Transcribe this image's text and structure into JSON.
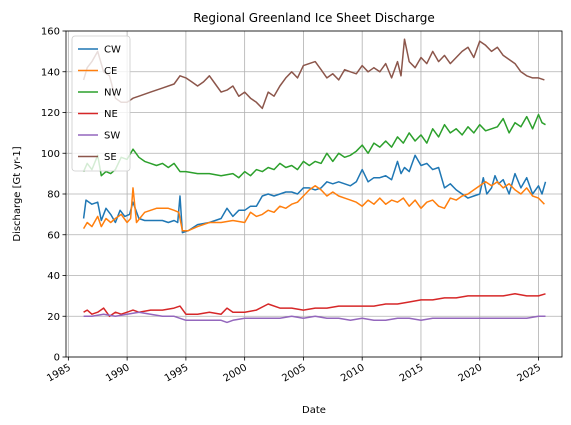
{
  "chart_data": {
    "type": "line",
    "title": "Regional Greenland Ice Sheet Discharge",
    "xlabel": "Date",
    "ylabel": "Discharge [Gt yr-1]",
    "xlim": [
      1984.8,
      2027.0
    ],
    "ylim": [
      0,
      160
    ],
    "xticks": [
      1985,
      1990,
      1995,
      2000,
      2005,
      2010,
      2015,
      2020,
      2025
    ],
    "yticks": [
      0,
      20,
      40,
      60,
      80,
      100,
      120,
      140,
      160
    ],
    "grid": true,
    "legend_position": "top-left",
    "series": [
      {
        "name": "CW",
        "color": "#1f77b4",
        "x": [
          1986.3,
          1986.5,
          1987.0,
          1987.5,
          1987.8,
          1988.2,
          1988.6,
          1989.0,
          1989.4,
          1989.8,
          1990.2,
          1990.5,
          1991.0,
          1991.5,
          1992.0,
          1992.5,
          1993.0,
          1993.5,
          1994.0,
          1994.3,
          1994.5,
          1994.7,
          1995.2,
          1996.0,
          1997.0,
          1998.0,
          1998.5,
          1999.0,
          1999.5,
          2000.0,
          2000.5,
          2001.0,
          2001.5,
          2002.0,
          2002.5,
          2003.0,
          2003.5,
          2004.0,
          2004.5,
          2005.0,
          2005.5,
          2006.0,
          2006.5,
          2007.0,
          2007.5,
          2008.0,
          2008.5,
          2009.0,
          2009.5,
          2010.0,
          2010.5,
          2011.0,
          2011.5,
          2012.0,
          2012.5,
          2013.0,
          2013.3,
          2013.6,
          2014.0,
          2014.5,
          2015.0,
          2015.5,
          2016.0,
          2016.5,
          2017.0,
          2017.5,
          2018.0,
          2018.5,
          2019.0,
          2019.5,
          2020.0,
          2020.3,
          2020.6,
          2021.0,
          2021.3,
          2021.6,
          2022.0,
          2022.5,
          2023.0,
          2023.5,
          2024.0,
          2024.5,
          2025.0,
          2025.3,
          2025.6
        ],
        "y": [
          68,
          77,
          75,
          76,
          67,
          73,
          70,
          66,
          72,
          69,
          70,
          76,
          68,
          67,
          67,
          67,
          67,
          66,
          67,
          66,
          79,
          61,
          62,
          65,
          66,
          68,
          73,
          69,
          72,
          72,
          74,
          74,
          79,
          80,
          79,
          80,
          81,
          81,
          80,
          83,
          83,
          82,
          83,
          86,
          85,
          86,
          85,
          84,
          86,
          92,
          86,
          88,
          88,
          89,
          87,
          96,
          90,
          93,
          91,
          99,
          94,
          95,
          92,
          93,
          83,
          85,
          82,
          80,
          78,
          79,
          80,
          88,
          80,
          83,
          89,
          85,
          87,
          80,
          90,
          83,
          88,
          80,
          84,
          80,
          86
        ]
      },
      {
        "name": "CE",
        "color": "#ff7f0e",
        "x": [
          1986.3,
          1986.6,
          1987.0,
          1987.5,
          1987.8,
          1988.2,
          1988.6,
          1989.0,
          1989.5,
          1990.0,
          1990.3,
          1990.5,
          1990.8,
          1991.5,
          1992.0,
          1992.5,
          1993.0,
          1993.5,
          1994.0,
          1994.4,
          1994.7,
          1995.2,
          1996.0,
          1997.0,
          1998.0,
          1999.0,
          2000.0,
          2000.5,
          2001.0,
          2001.5,
          2002.0,
          2002.5,
          2003.0,
          2003.5,
          2004.0,
          2004.5,
          2005.0,
          2005.5,
          2006.0,
          2006.5,
          2007.0,
          2007.5,
          2008.0,
          2008.5,
          2009.0,
          2009.5,
          2010.0,
          2010.5,
          2011.0,
          2011.5,
          2012.0,
          2012.5,
          2013.0,
          2013.5,
          2014.0,
          2014.5,
          2015.0,
          2015.5,
          2016.0,
          2016.5,
          2017.0,
          2017.5,
          2018.0,
          2018.5,
          2019.0,
          2019.5,
          2020.0,
          2020.5,
          2021.0,
          2021.5,
          2022.0,
          2022.5,
          2023.0,
          2023.5,
          2024.0,
          2024.5,
          2025.0,
          2025.5
        ],
        "y": [
          63,
          66,
          64,
          69,
          64,
          68,
          66,
          68,
          70,
          66,
          68,
          83,
          66,
          71,
          72,
          73,
          73,
          73,
          72,
          71,
          62,
          62,
          64,
          66,
          66,
          67,
          66,
          71,
          69,
          70,
          72,
          71,
          74,
          73,
          75,
          76,
          79,
          82,
          84,
          82,
          79,
          81,
          79,
          78,
          77,
          76,
          74,
          77,
          75,
          78,
          75,
          77,
          76,
          78,
          74,
          77,
          73,
          76,
          77,
          74,
          73,
          78,
          77,
          79,
          80,
          82,
          84,
          86,
          84,
          86,
          83,
          85,
          82,
          80,
          83,
          79,
          78,
          75
        ]
      },
      {
        "name": "NW",
        "color": "#2ca02c",
        "x": [
          1986.3,
          1986.6,
          1987.0,
          1987.5,
          1987.8,
          1988.2,
          1988.6,
          1989.0,
          1989.5,
          1990.0,
          1990.5,
          1991.0,
          1991.5,
          1992.0,
          1992.5,
          1993.0,
          1993.5,
          1994.0,
          1994.5,
          1995.0,
          1996.0,
          1997.0,
          1998.0,
          1999.0,
          1999.5,
          2000.0,
          2000.5,
          2001.0,
          2001.5,
          2002.0,
          2002.5,
          2003.0,
          2003.5,
          2004.0,
          2004.5,
          2005.0,
          2005.5,
          2006.0,
          2006.5,
          2007.0,
          2007.5,
          2008.0,
          2008.5,
          2009.0,
          2009.5,
          2010.0,
          2010.5,
          2011.0,
          2011.5,
          2012.0,
          2012.5,
          2013.0,
          2013.5,
          2014.0,
          2014.5,
          2015.0,
          2015.5,
          2016.0,
          2016.5,
          2017.0,
          2017.5,
          2018.0,
          2018.5,
          2019.0,
          2019.5,
          2020.0,
          2020.5,
          2021.0,
          2021.5,
          2022.0,
          2022.5,
          2023.0,
          2023.5,
          2024.0,
          2024.5,
          2025.0,
          2025.3,
          2025.6
        ],
        "y": [
          91,
          95,
          92,
          99,
          89,
          91,
          90,
          92,
          98,
          97,
          102,
          98,
          96,
          95,
          94,
          95,
          93,
          95,
          91,
          91,
          90,
          90,
          89,
          90,
          88,
          91,
          89,
          92,
          91,
          93,
          92,
          95,
          93,
          94,
          92,
          96,
          94,
          96,
          95,
          100,
          96,
          100,
          98,
          99,
          101,
          104,
          100,
          105,
          103,
          106,
          103,
          108,
          105,
          110,
          106,
          109,
          105,
          112,
          108,
          114,
          110,
          112,
          109,
          113,
          110,
          114,
          111,
          112,
          113,
          117,
          110,
          115,
          113,
          118,
          112,
          119,
          115,
          114
        ]
      },
      {
        "name": "NE",
        "color": "#d62728",
        "x": [
          1986.3,
          1986.6,
          1987.0,
          1987.5,
          1988.0,
          1988.5,
          1989.0,
          1989.5,
          1990.0,
          1990.5,
          1991.0,
          1992.0,
          1993.0,
          1994.0,
          1994.5,
          1995.0,
          1996.0,
          1997.0,
          1998.0,
          1998.5,
          1999.0,
          2000.0,
          2001.0,
          2002.0,
          2003.0,
          2004.0,
          2005.0,
          2006.0,
          2007.0,
          2008.0,
          2009.0,
          2010.0,
          2011.0,
          2012.0,
          2013.0,
          2014.0,
          2015.0,
          2016.0,
          2017.0,
          2018.0,
          2019.0,
          2020.0,
          2021.0,
          2022.0,
          2023.0,
          2024.0,
          2025.0,
          2025.6
        ],
        "y": [
          22,
          23,
          21,
          22,
          24,
          20,
          22,
          21,
          22,
          23,
          22,
          23,
          23,
          24,
          25,
          21,
          21,
          22,
          21,
          24,
          22,
          22,
          23,
          26,
          24,
          24,
          23,
          24,
          24,
          25,
          25,
          25,
          25,
          26,
          26,
          27,
          28,
          28,
          29,
          29,
          30,
          30,
          30,
          30,
          31,
          30,
          30,
          31
        ]
      },
      {
        "name": "SW",
        "color": "#9467bd",
        "x": [
          1986.3,
          1987.0,
          1988.0,
          1989.0,
          1990.0,
          1991.0,
          1992.0,
          1993.0,
          1994.0,
          1995.0,
          1996.0,
          1997.0,
          1998.0,
          1998.5,
          1999.0,
          2000.0,
          2001.0,
          2002.0,
          2003.0,
          2004.0,
          2005.0,
          2006.0,
          2007.0,
          2008.0,
          2009.0,
          2010.0,
          2011.0,
          2012.0,
          2013.0,
          2014.0,
          2015.0,
          2016.0,
          2017.0,
          2018.0,
          2019.0,
          2020.0,
          2021.0,
          2022.0,
          2023.0,
          2024.0,
          2025.0,
          2025.6
        ],
        "y": [
          20,
          20,
          21,
          20,
          21,
          22,
          21,
          20,
          20,
          18,
          18,
          18,
          18,
          17,
          18,
          19,
          19,
          19,
          19,
          20,
          19,
          20,
          19,
          19,
          18,
          19,
          18,
          18,
          19,
          19,
          18,
          19,
          19,
          19,
          19,
          19,
          19,
          19,
          19,
          19,
          20,
          20
        ]
      },
      {
        "name": "SE",
        "color": "#8c564b",
        "x": [
          1986.3,
          1986.6,
          1987.0,
          1987.5,
          1988.0,
          1988.5,
          1989.0,
          1989.5,
          1990.0,
          1990.5,
          1991.0,
          1992.0,
          1993.0,
          1994.0,
          1994.5,
          1995.0,
          1995.5,
          1996.0,
          1996.5,
          1997.0,
          1997.5,
          1998.0,
          1998.5,
          1999.0,
          1999.5,
          2000.0,
          2000.5,
          2001.0,
          2001.5,
          2002.0,
          2002.5,
          2003.0,
          2003.5,
          2004.0,
          2004.5,
          2005.0,
          2005.5,
          2006.0,
          2006.5,
          2007.0,
          2007.5,
          2008.0,
          2008.5,
          2009.0,
          2009.5,
          2010.0,
          2010.5,
          2011.0,
          2011.5,
          2012.0,
          2012.5,
          2013.0,
          2013.3,
          2013.6,
          2014.0,
          2014.5,
          2015.0,
          2015.5,
          2016.0,
          2016.5,
          2017.0,
          2017.5,
          2018.0,
          2018.5,
          2019.0,
          2019.5,
          2020.0,
          2020.5,
          2021.0,
          2021.5,
          2022.0,
          2022.5,
          2023.0,
          2023.5,
          2024.0,
          2024.5,
          2025.0,
          2025.5
        ],
        "y": [
          136,
          142,
          145,
          150,
          140,
          138,
          127,
          125,
          125,
          127,
          128,
          130,
          132,
          134,
          138,
          137,
          135,
          133,
          135,
          138,
          134,
          130,
          131,
          133,
          128,
          130,
          127,
          125,
          122,
          130,
          128,
          133,
          137,
          140,
          137,
          143,
          144,
          145,
          141,
          137,
          139,
          136,
          141,
          140,
          139,
          143,
          140,
          142,
          140,
          144,
          137,
          145,
          138,
          156,
          145,
          142,
          147,
          144,
          150,
          145,
          148,
          144,
          147,
          150,
          152,
          147,
          155,
          153,
          150,
          152,
          148,
          146,
          144,
          140,
          138,
          137,
          137,
          136
        ]
      }
    ]
  }
}
